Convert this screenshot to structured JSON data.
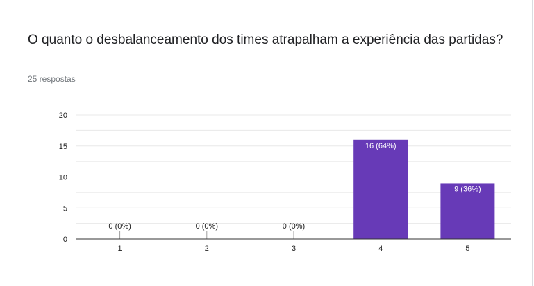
{
  "question": {
    "title": "O quanto o desbalanceamento dos times atrapalham a experiência das partidas?",
    "response_count": "25 respostas"
  },
  "colors": {
    "bar": "#673ab7",
    "grid": "#e8e8e8",
    "axis": "#333333",
    "label_inside": "#ffffff",
    "label_outside": "#222222"
  },
  "chart_data": {
    "type": "bar",
    "categories": [
      "1",
      "2",
      "3",
      "4",
      "5"
    ],
    "values": [
      0,
      0,
      0,
      16,
      9
    ],
    "data_labels": [
      "0 (0%)",
      "0 (0%)",
      "0 (0%)",
      "16 (64%)",
      "9 (36%)"
    ],
    "y_ticks": [
      "0",
      "5",
      "10",
      "15",
      "20"
    ],
    "ylim": [
      0,
      20
    ],
    "grid": true,
    "legend": "none"
  }
}
